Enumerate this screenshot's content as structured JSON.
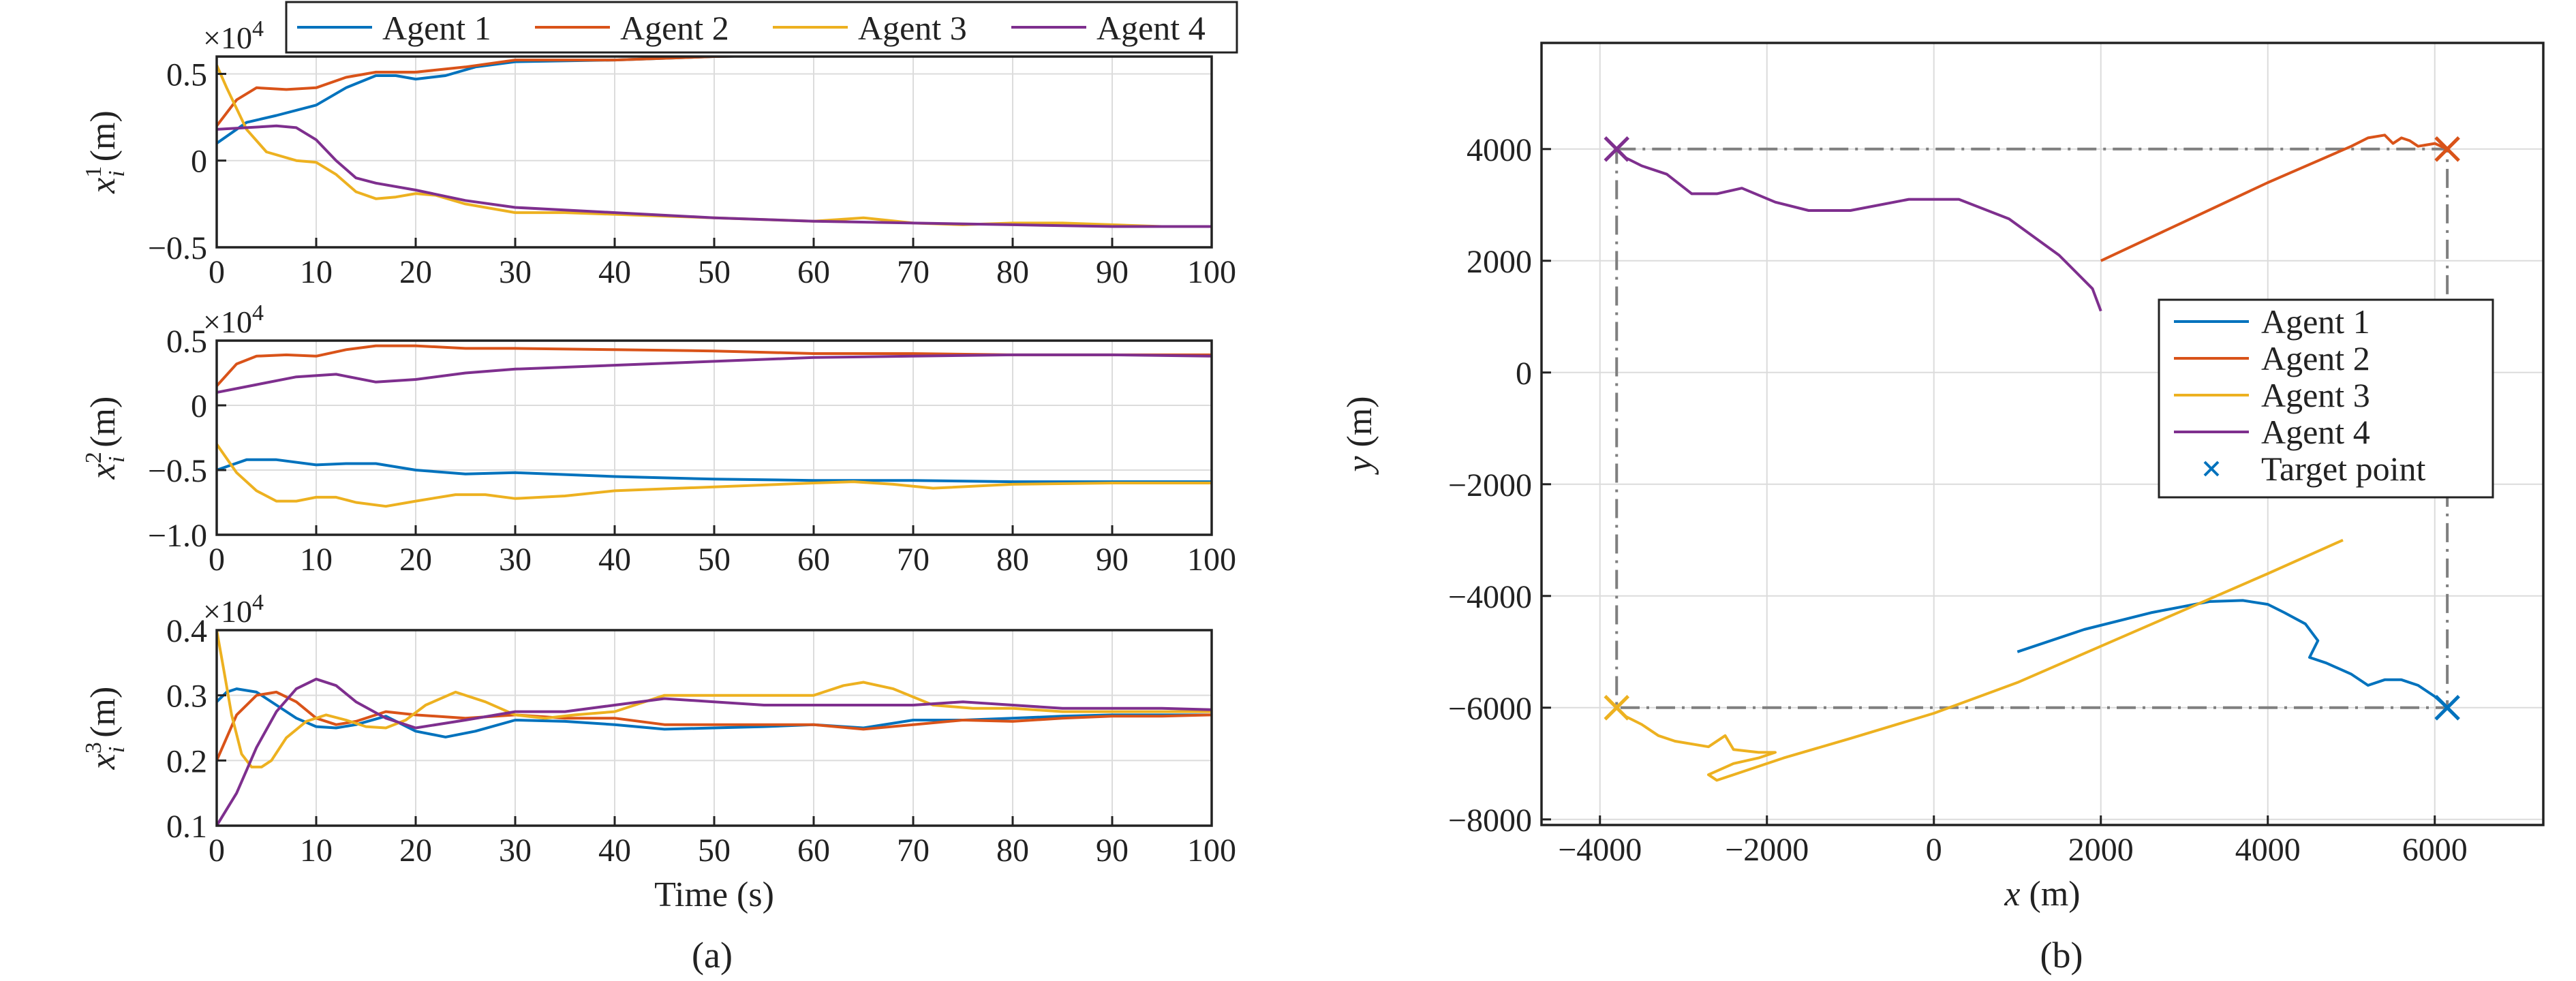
{
  "figure": {
    "caption_a": "(a)",
    "caption_b": "(b)",
    "legend_top": [
      "Agent 1",
      "Agent 2",
      "Agent 3",
      "Agent 4"
    ]
  },
  "colors": {
    "agent1": "#0072BD",
    "agent2": "#D95319",
    "agent3": "#EDB120",
    "agent4": "#7E2F8E",
    "boundary": "#7f7f7f",
    "grid": "#dcdcdc"
  },
  "chart_data": [
    {
      "type": "line",
      "panel": "a1",
      "title": "",
      "xlabel": "",
      "ylabel": "x_i^1 (m)",
      "ylabel_base": "x",
      "ylabel_sub": "i",
      "ylabel_sup": "1",
      "ylabel_unit": " (m)",
      "exponent": "×10^4",
      "exponent_base": "×10",
      "exponent_pow": "4",
      "xlim": [
        0,
        100
      ],
      "ylim": [
        -0.5,
        0.6
      ],
      "xticks": [
        0,
        10,
        20,
        30,
        40,
        50,
        60,
        70,
        80,
        90,
        100
      ],
      "xtick_labels": [
        "0",
        "10",
        "20",
        "30",
        "40",
        "50",
        "60",
        "70",
        "80",
        "90",
        "100"
      ],
      "yticks": [
        -0.5,
        0,
        0.5
      ],
      "ytick_labels": [
        "−0.5",
        "0",
        "0.5"
      ],
      "grid": true,
      "series": [
        {
          "name": "Agent 1",
          "color": "#0072BD",
          "x": [
            0,
            3,
            6,
            10,
            13,
            16,
            18,
            20,
            23,
            26,
            30,
            40,
            50,
            60,
            70,
            80,
            90,
            100
          ],
          "y": [
            0.1,
            0.22,
            0.26,
            0.32,
            0.42,
            0.49,
            0.49,
            0.47,
            0.49,
            0.54,
            0.57,
            0.58,
            0.6,
            0.61,
            0.61,
            0.62,
            0.62,
            0.62
          ]
        },
        {
          "name": "Agent 2",
          "color": "#D95319",
          "x": [
            0,
            2,
            4,
            7,
            10,
            13,
            16,
            20,
            25,
            30,
            40,
            50,
            60,
            70,
            80,
            90,
            100
          ],
          "y": [
            0.2,
            0.35,
            0.42,
            0.41,
            0.42,
            0.48,
            0.51,
            0.51,
            0.54,
            0.58,
            0.58,
            0.6,
            0.61,
            0.61,
            0.62,
            0.62,
            0.62
          ]
        },
        {
          "name": "Agent 3",
          "color": "#EDB120",
          "x": [
            0,
            1,
            3,
            5,
            8,
            10,
            12,
            14,
            16,
            18,
            20,
            22,
            25,
            30,
            35,
            40,
            45,
            50,
            55,
            60,
            65,
            70,
            75,
            80,
            85,
            90,
            95,
            100
          ],
          "y": [
            0.55,
            0.42,
            0.18,
            0.05,
            0.0,
            -0.01,
            -0.08,
            -0.18,
            -0.22,
            -0.21,
            -0.19,
            -0.2,
            -0.25,
            -0.3,
            -0.3,
            -0.31,
            -0.32,
            -0.33,
            -0.34,
            -0.35,
            -0.33,
            -0.36,
            -0.37,
            -0.36,
            -0.36,
            -0.37,
            -0.38,
            -0.38
          ]
        },
        {
          "name": "Agent 4",
          "color": "#7E2F8E",
          "x": [
            0,
            3,
            6,
            8,
            10,
            12,
            14,
            16,
            20,
            25,
            30,
            40,
            50,
            60,
            70,
            80,
            90,
            100
          ],
          "y": [
            0.18,
            0.19,
            0.2,
            0.19,
            0.12,
            0.0,
            -0.1,
            -0.13,
            -0.17,
            -0.23,
            -0.27,
            -0.3,
            -0.33,
            -0.35,
            -0.36,
            -0.37,
            -0.38,
            -0.38
          ]
        }
      ]
    },
    {
      "type": "line",
      "panel": "a2",
      "title": "",
      "xlabel": "",
      "ylabel": "x_i^2 (m)",
      "ylabel_base": "x",
      "ylabel_sub": "i",
      "ylabel_sup": "2",
      "ylabel_unit": " (m)",
      "exponent": "×10^4",
      "exponent_base": "×10",
      "exponent_pow": "4",
      "xlim": [
        0,
        100
      ],
      "ylim": [
        -1.0,
        0.5
      ],
      "xticks": [
        0,
        10,
        20,
        30,
        40,
        50,
        60,
        70,
        80,
        90,
        100
      ],
      "xtick_labels": [
        "0",
        "10",
        "20",
        "30",
        "40",
        "50",
        "60",
        "70",
        "80",
        "90",
        "100"
      ],
      "yticks": [
        -1.0,
        -0.5,
        0,
        0.5
      ],
      "ytick_labels": [
        "−1.0",
        "−0.5",
        "0",
        "0.5"
      ],
      "grid": true,
      "series": [
        {
          "name": "Agent 1",
          "color": "#0072BD",
          "x": [
            0,
            3,
            6,
            10,
            13,
            16,
            20,
            25,
            30,
            40,
            50,
            60,
            70,
            80,
            90,
            100
          ],
          "y": [
            -0.5,
            -0.42,
            -0.42,
            -0.46,
            -0.45,
            -0.45,
            -0.5,
            -0.53,
            -0.52,
            -0.55,
            -0.57,
            -0.58,
            -0.58,
            -0.59,
            -0.59,
            -0.59
          ]
        },
        {
          "name": "Agent 2",
          "color": "#D95319",
          "x": [
            0,
            2,
            4,
            7,
            10,
            13,
            16,
            20,
            25,
            30,
            40,
            50,
            60,
            70,
            80,
            90,
            100
          ],
          "y": [
            0.15,
            0.32,
            0.38,
            0.39,
            0.38,
            0.43,
            0.46,
            0.46,
            0.44,
            0.44,
            0.43,
            0.42,
            0.4,
            0.4,
            0.39,
            0.39,
            0.39
          ]
        },
        {
          "name": "Agent 3",
          "color": "#EDB120",
          "x": [
            0,
            2,
            4,
            6,
            8,
            10,
            12,
            14,
            17,
            20,
            24,
            27,
            30,
            35,
            40,
            50,
            60,
            64,
            68,
            72,
            80,
            90,
            100
          ],
          "y": [
            -0.3,
            -0.52,
            -0.66,
            -0.74,
            -0.74,
            -0.71,
            -0.71,
            -0.75,
            -0.78,
            -0.74,
            -0.69,
            -0.69,
            -0.72,
            -0.7,
            -0.66,
            -0.63,
            -0.6,
            -0.59,
            -0.61,
            -0.64,
            -0.61,
            -0.6,
            -0.6
          ]
        },
        {
          "name": "Agent 4",
          "color": "#7E2F8E",
          "x": [
            0,
            4,
            8,
            12,
            16,
            20,
            25,
            30,
            40,
            50,
            60,
            70,
            80,
            90,
            100
          ],
          "y": [
            0.1,
            0.16,
            0.22,
            0.24,
            0.18,
            0.2,
            0.25,
            0.28,
            0.31,
            0.34,
            0.37,
            0.38,
            0.39,
            0.39,
            0.38
          ]
        }
      ]
    },
    {
      "type": "line",
      "panel": "a3",
      "title": "",
      "xlabel": "Time (s)",
      "ylabel": "x_i^3 (m)",
      "ylabel_base": "x",
      "ylabel_sub": "i",
      "ylabel_sup": "3",
      "ylabel_unit": " (m)",
      "exponent": "×10^4",
      "exponent_base": "×10",
      "exponent_pow": "4",
      "xlim": [
        0,
        100
      ],
      "ylim": [
        0.1,
        0.4
      ],
      "xticks": [
        0,
        10,
        20,
        30,
        40,
        50,
        60,
        70,
        80,
        90,
        100
      ],
      "xtick_labels": [
        "0",
        "10",
        "20",
        "30",
        "40",
        "50",
        "60",
        "70",
        "80",
        "90",
        "100"
      ],
      "yticks": [
        0.1,
        0.2,
        0.3,
        0.4
      ],
      "ytick_labels": [
        "0.1",
        "0.2",
        "0.3",
        "0.4"
      ],
      "grid": true,
      "series": [
        {
          "name": "Agent 1",
          "color": "#0072BD",
          "x": [
            0,
            1,
            2,
            4,
            6,
            8,
            10,
            12,
            14,
            17,
            20,
            23,
            26,
            30,
            35,
            40,
            45,
            50,
            55,
            60,
            65,
            70,
            75,
            80,
            85,
            90,
            95,
            100
          ],
          "y": [
            0.29,
            0.305,
            0.31,
            0.305,
            0.285,
            0.265,
            0.252,
            0.25,
            0.255,
            0.268,
            0.245,
            0.236,
            0.245,
            0.262,
            0.26,
            0.255,
            0.248,
            0.25,
            0.252,
            0.255,
            0.25,
            0.262,
            0.262,
            0.265,
            0.268,
            0.27,
            0.27,
            0.27
          ]
        },
        {
          "name": "Agent 2",
          "color": "#D95319",
          "x": [
            0,
            2,
            4,
            6,
            8,
            10,
            12,
            14,
            17,
            20,
            25,
            30,
            35,
            40,
            45,
            50,
            55,
            60,
            65,
            70,
            75,
            80,
            85,
            90,
            95,
            100
          ],
          "y": [
            0.2,
            0.27,
            0.3,
            0.305,
            0.29,
            0.265,
            0.255,
            0.26,
            0.275,
            0.27,
            0.265,
            0.27,
            0.265,
            0.265,
            0.255,
            0.255,
            0.255,
            0.255,
            0.248,
            0.255,
            0.262,
            0.26,
            0.265,
            0.268,
            0.268,
            0.27
          ]
        },
        {
          "name": "Agent 3",
          "color": "#EDB120",
          "x": [
            0,
            0.7,
            1.5,
            2.5,
            3.5,
            4.5,
            5.5,
            7,
            9,
            11,
            13,
            15,
            17,
            19,
            21,
            24,
            27,
            30,
            33,
            36,
            40,
            45,
            50,
            55,
            60,
            63,
            65,
            68,
            72,
            76,
            80,
            85,
            90,
            95,
            100
          ],
          "y": [
            0.4,
            0.34,
            0.27,
            0.21,
            0.19,
            0.19,
            0.2,
            0.235,
            0.26,
            0.27,
            0.262,
            0.252,
            0.25,
            0.262,
            0.285,
            0.305,
            0.29,
            0.27,
            0.265,
            0.27,
            0.275,
            0.3,
            0.3,
            0.3,
            0.3,
            0.315,
            0.32,
            0.31,
            0.285,
            0.28,
            0.28,
            0.275,
            0.275,
            0.275,
            0.275
          ]
        },
        {
          "name": "Agent 4",
          "color": "#7E2F8E",
          "x": [
            0,
            2,
            4,
            6,
            8,
            10,
            12,
            14,
            17,
            20,
            25,
            30,
            35,
            40,
            45,
            50,
            55,
            60,
            65,
            70,
            75,
            80,
            85,
            90,
            95,
            100
          ],
          "y": [
            0.1,
            0.15,
            0.22,
            0.275,
            0.31,
            0.325,
            0.315,
            0.29,
            0.265,
            0.25,
            0.262,
            0.275,
            0.275,
            0.285,
            0.295,
            0.29,
            0.285,
            0.285,
            0.285,
            0.285,
            0.29,
            0.285,
            0.28,
            0.28,
            0.28,
            0.278
          ]
        }
      ]
    },
    {
      "type": "line",
      "panel": "b",
      "title": "",
      "xlabel": "x (m)",
      "xlabel_var": "x",
      "xlabel_unit": " (m)",
      "ylabel": "y (m)",
      "ylabel_var": "y",
      "ylabel_unit": " (m)",
      "xlim": [
        -4700,
        7300
      ],
      "ylim": [
        -8100,
        5900
      ],
      "xticks": [
        -4000,
        -2000,
        0,
        2000,
        4000,
        6000
      ],
      "xtick_labels": [
        "−4000",
        "−2000",
        "0",
        "2000",
        "4000",
        "6000"
      ],
      "yticks": [
        -8000,
        -6000,
        -4000,
        -2000,
        0,
        2000,
        4000
      ],
      "ytick_labels": [
        "−8000",
        "−6000",
        "−4000",
        "−2000",
        "0",
        "2000",
        "4000"
      ],
      "grid": true,
      "legend": [
        "Agent 1",
        "Agent 2",
        "Agent 3",
        "Agent 4",
        "Target point"
      ],
      "legend_position": "right",
      "series": [
        {
          "name": "Agent 1",
          "color": "#0072BD",
          "x": [
            1000,
            1800,
            2600,
            3300,
            3700,
            4000,
            4200,
            4450,
            4600,
            4500,
            4700,
            5000,
            5200,
            5400,
            5600,
            5800,
            6000,
            6150
          ],
          "y": [
            -5000,
            -4600,
            -4300,
            -4100,
            -4080,
            -4150,
            -4300,
            -4500,
            -4800,
            -5100,
            -5200,
            -5400,
            -5600,
            -5500,
            -5500,
            -5600,
            -5800,
            -6000
          ]
        },
        {
          "name": "Agent 2",
          "color": "#D95319",
          "x": [
            2000,
            3000,
            4000,
            5000,
            5200,
            5400,
            5500,
            5600,
            5700,
            5800,
            6000,
            6150
          ],
          "y": [
            2000,
            2700,
            3400,
            4050,
            4200,
            4250,
            4100,
            4200,
            4150,
            4050,
            4100,
            4000
          ]
        },
        {
          "name": "Agent 3",
          "color": "#EDB120",
          "x": [
            4900,
            4000,
            3000,
            2000,
            1000,
            0,
            -1000,
            -1800,
            -2300,
            -2600,
            -2700,
            -2400,
            -2100,
            -1900,
            -2100,
            -2400,
            -2500,
            -2700,
            -3100,
            -3300,
            -3500,
            -3700,
            -3800
          ],
          "y": [
            -3000,
            -3600,
            -4250,
            -4900,
            -5550,
            -6100,
            -6550,
            -6900,
            -7150,
            -7300,
            -7200,
            -7000,
            -6900,
            -6800,
            -6800,
            -6750,
            -6500,
            -6700,
            -6600,
            -6500,
            -6300,
            -6150,
            -6000
          ]
        },
        {
          "name": "Agent 4",
          "color": "#7E2F8E",
          "x": [
            2000,
            1900,
            1500,
            900,
            300,
            -300,
            -1000,
            -1500,
            -1900,
            -2300,
            -2600,
            -2900,
            -3200,
            -3500,
            -3700,
            -3800
          ],
          "y": [
            1100,
            1500,
            2100,
            2750,
            3100,
            3100,
            2900,
            2900,
            3050,
            3300,
            3200,
            3200,
            3550,
            3700,
            3850,
            4000
          ]
        }
      ],
      "targets": [
        {
          "x": 6150,
          "y": -6000,
          "color": "#0072BD"
        },
        {
          "x": 6150,
          "y": 4000,
          "color": "#D95319"
        },
        {
          "x": -3800,
          "y": -6000,
          "color": "#EDB120"
        },
        {
          "x": -3800,
          "y": 4000,
          "color": "#7E2F8E"
        }
      ],
      "boundary": {
        "x": [
          -3800,
          6150
        ],
        "y": [
          -6000,
          4000
        ]
      }
    }
  ]
}
